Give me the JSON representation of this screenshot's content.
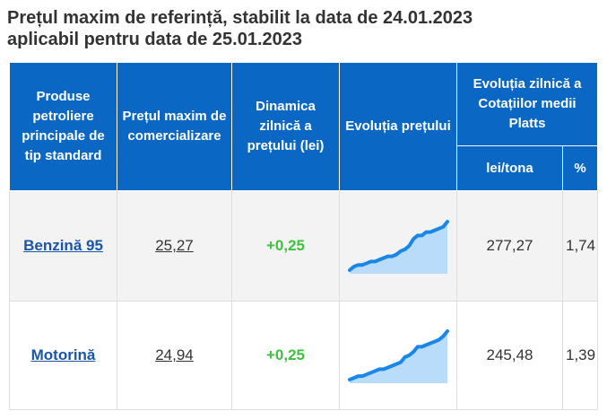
{
  "title_line1": "Prețul maxim de referință, stabilit la data de 24.01.2023",
  "title_line2": "aplicabil pentru data de 25.01.2023",
  "headers": {
    "product": "Produse petroliere principale de tip standard",
    "max_price": "Prețul maxim de comercializare",
    "daily_dynamic": "Dinamica zilnică a prețului (lei)",
    "price_evolution": "Evoluția prețului",
    "platts": "Evoluția zilnică a Cotațiilor medii Platts",
    "lei_tona": "lei/tona",
    "percent": "%"
  },
  "rows": [
    {
      "product": "Benzină 95",
      "price": "25,27",
      "change": "+0,25",
      "lei_tona": "277,27",
      "percent": "1,74",
      "trend": [
        20,
        22,
        23,
        23,
        24,
        25,
        25,
        26,
        27,
        28,
        28,
        29,
        31,
        32,
        34,
        38,
        40,
        40,
        42,
        42,
        43,
        44,
        45,
        48
      ]
    },
    {
      "product": "Motorină",
      "price": "24,94",
      "change": "+0,25",
      "lei_tona": "245,48",
      "percent": "1,39",
      "trend": [
        19,
        20,
        21,
        21,
        22,
        23,
        24,
        25,
        25,
        26,
        27,
        28,
        29,
        32,
        33,
        35,
        38,
        38,
        39,
        40,
        41,
        42,
        44,
        47
      ]
    }
  ],
  "colors": {
    "header_bg": "#0a68c4",
    "link": "#1a56a8",
    "positive": "#3cc33c",
    "spark_line": "#1a86e8",
    "spark_fill": "#b9dcfa"
  }
}
